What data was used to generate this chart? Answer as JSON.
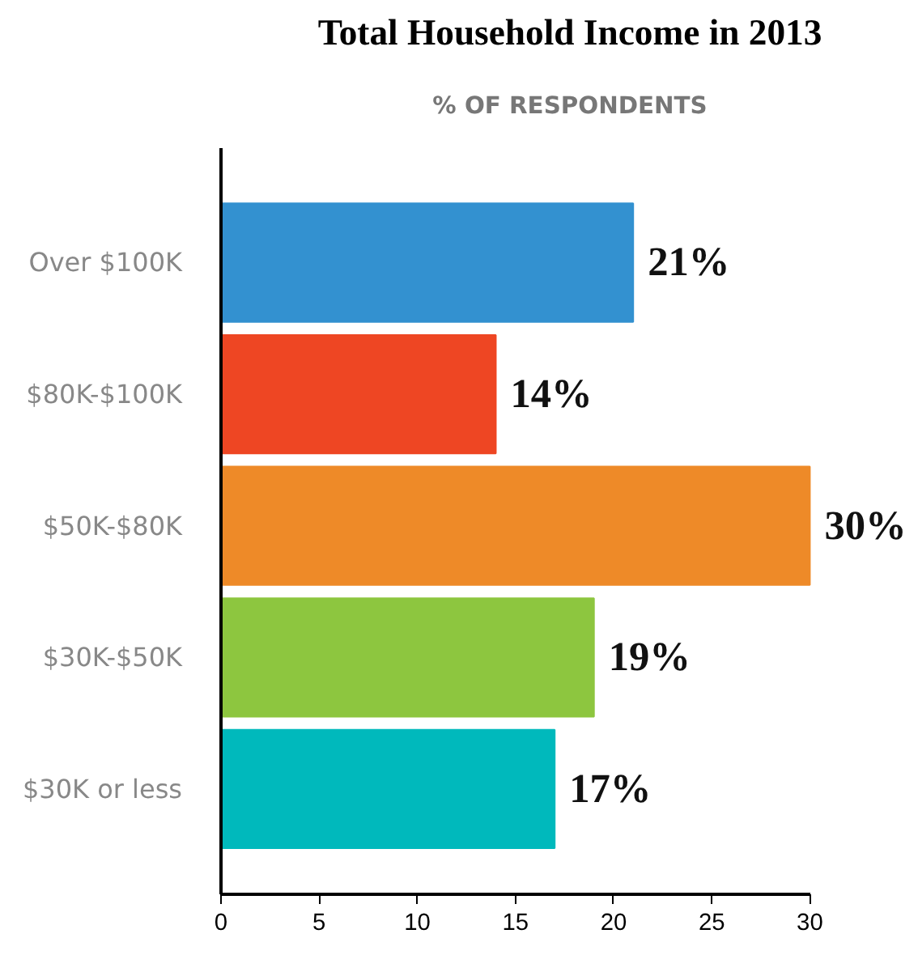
{
  "chart_data": {
    "type": "bar",
    "orientation": "horizontal",
    "title": "Total Household Income in 2013",
    "subtitle": "% OF RESPONDENTS",
    "categories": [
      "Over $100K",
      "$80K-$100K",
      "$50K-$80K",
      "$30K-$50K",
      "$30K or less"
    ],
    "values": [
      21,
      14,
      30,
      19,
      17
    ],
    "colors": [
      "#3391d0",
      "#ee4623",
      "#ee8a28",
      "#8dc63f",
      "#00b9bc"
    ],
    "value_labels": [
      "21%",
      "14%",
      "30%",
      "19%",
      "17%"
    ],
    "xlim": [
      0,
      30
    ],
    "xticks": [
      0,
      5,
      10,
      15,
      20,
      25,
      30
    ],
    "grid": false
  }
}
